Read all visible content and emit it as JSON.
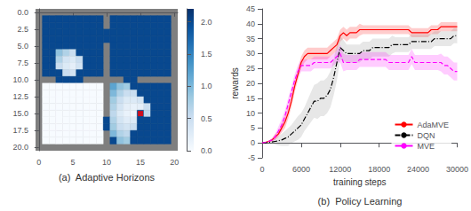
{
  "chart_data": [
    {
      "type": "heatmap",
      "xlabel": "(a)  Adaptive Horizons",
      "cells": [
        [
          null,
          null,
          null,
          null,
          null,
          null,
          null,
          null,
          null,
          null,
          null,
          null,
          null,
          null,
          null,
          null,
          null,
          null,
          null,
          null,
          null
        ],
        [
          null,
          2,
          2,
          2,
          2,
          2,
          2,
          2,
          2,
          2,
          null,
          2,
          2,
          2,
          2,
          2,
          2,
          2,
          2,
          2,
          null
        ],
        [
          null,
          2,
          2,
          2,
          2,
          2,
          2,
          2,
          2,
          2,
          null,
          2,
          2,
          2,
          2,
          2,
          2,
          2,
          2,
          2,
          null
        ],
        [
          null,
          2,
          2,
          2,
          2,
          2,
          2,
          2,
          2,
          2,
          2,
          2,
          2,
          2,
          2,
          2,
          2,
          2,
          2,
          2,
          null
        ],
        [
          null,
          2,
          2,
          2,
          2,
          2,
          2,
          2,
          2,
          2,
          2,
          2,
          2,
          2,
          2,
          2,
          2,
          2,
          2,
          2,
          null
        ],
        [
          null,
          2,
          2,
          2,
          2,
          2,
          2,
          2,
          2,
          2,
          null,
          2,
          2,
          2,
          2,
          2,
          2,
          2,
          2,
          2,
          null
        ],
        [
          null,
          2,
          2,
          0.9,
          0.7,
          0.5,
          2,
          2,
          2,
          2,
          null,
          2,
          2,
          2,
          2,
          2,
          2,
          2,
          2,
          2,
          null
        ],
        [
          null,
          2,
          2,
          0.7,
          0.4,
          0.3,
          0.5,
          2,
          2,
          2,
          null,
          2,
          2,
          2,
          2,
          2,
          2,
          2,
          2,
          2,
          null
        ],
        [
          null,
          2,
          2,
          0.5,
          0.3,
          0.2,
          0.4,
          2,
          2,
          2,
          null,
          2,
          2,
          2,
          2,
          2,
          2,
          2,
          2,
          2,
          null
        ],
        [
          null,
          2,
          2,
          2,
          0.5,
          0.4,
          2,
          2,
          2,
          2,
          null,
          2,
          2,
          2,
          2,
          2,
          2,
          2,
          2,
          2,
          null
        ],
        [
          null,
          null,
          null,
          2,
          2,
          2,
          2,
          null,
          null,
          null,
          null,
          null,
          null,
          2,
          2,
          null,
          null,
          null,
          null,
          null,
          null
        ],
        [
          null,
          0,
          0,
          0,
          0,
          0,
          0,
          0,
          0,
          0,
          null,
          1.2,
          0.9,
          0.8,
          2,
          2,
          2,
          2,
          2,
          2,
          null
        ],
        [
          null,
          0,
          0,
          0,
          0,
          0,
          0,
          0,
          0,
          0,
          null,
          1.0,
          0.7,
          0.5,
          0.5,
          2,
          2,
          2,
          2,
          2,
          null
        ],
        [
          null,
          0,
          0,
          0,
          0,
          0,
          0,
          0,
          0,
          0,
          null,
          0.8,
          0.5,
          0.3,
          0.3,
          0.4,
          2,
          2,
          2,
          2,
          null
        ],
        [
          null,
          0,
          0,
          0,
          0,
          0,
          0,
          0,
          0,
          0,
          null,
          0.7,
          0.4,
          0.2,
          0.15,
          0.2,
          0.5,
          2,
          2,
          2,
          null
        ],
        [
          null,
          0,
          0,
          0,
          0,
          0,
          0,
          0,
          0,
          0,
          null,
          0.6,
          0.3,
          0.15,
          0.1,
          2,
          0.6,
          2,
          2,
          2,
          null
        ],
        [
          null,
          0,
          0,
          0,
          0,
          0,
          0,
          0,
          0,
          0,
          2,
          0.7,
          0.4,
          0.25,
          0.3,
          2,
          2,
          2,
          2,
          2,
          null
        ],
        [
          null,
          0,
          0,
          0,
          0,
          0,
          0,
          0,
          0,
          0,
          2,
          0.8,
          0.5,
          0.4,
          0.5,
          2,
          2,
          2,
          2,
          2,
          null
        ],
        [
          null,
          0,
          0,
          0,
          0,
          0,
          0,
          0,
          0,
          0,
          null,
          1.0,
          0.7,
          0.6,
          2,
          2,
          2,
          2,
          2,
          2,
          null
        ],
        [
          null,
          0,
          0,
          0,
          0,
          0,
          0,
          0,
          0,
          0,
          null,
          2,
          0.9,
          0.8,
          2,
          2,
          2,
          2,
          2,
          2,
          null
        ],
        [
          null,
          null,
          null,
          null,
          null,
          null,
          null,
          null,
          null,
          null,
          null,
          null,
          null,
          null,
          null,
          null,
          null,
          null,
          null,
          null,
          null
        ]
      ],
      "xlim": [
        -0.5,
        20.5
      ],
      "ylim": [
        20.5,
        -0.5
      ],
      "xticks": [
        0,
        5,
        10,
        15,
        20
      ],
      "yticks": [
        {
          "value": 0,
          "label": "0.0"
        },
        2.5,
        {
          "value": 5,
          "label": "5.0"
        },
        7.5,
        {
          "value": 10,
          "label": "10.0"
        },
        12.5,
        {
          "value": 15,
          "label": "15.0"
        },
        17.5,
        {
          "value": 20,
          "label": "20.0"
        }
      ],
      "colorbar": {
        "range": [
          0.0,
          2.2
        ],
        "ticks": [
          {
            "value": 0,
            "label": "0.0"
          },
          0.5,
          {
            "value": 1,
            "label": "1.0"
          },
          1.5,
          {
            "value": 2,
            "label": "2.0"
          }
        ],
        "colors": [
          "#f7fbff",
          "#deebf7",
          "#c6dbef",
          "#9ecae1",
          "#6baed6",
          "#4292c6",
          "#2171b5",
          "#08519c",
          "#08306b"
        ],
        "missing_color": "#7f7f7f"
      },
      "grid": false,
      "series": [
        {
          "type": "scatter",
          "marker": "square",
          "color": "#ff0000",
          "x": [
            15
          ],
          "y": [
            15
          ]
        }
      ]
    },
    {
      "type": "line",
      "xlabel": "training steps",
      "ylabel": "rewards",
      "caption": "(b)  Policy Learning",
      "x": [
        0,
        500,
        1000,
        1500,
        2000,
        2500,
        3000,
        3500,
        4000,
        4500,
        5000,
        5500,
        6000,
        6500,
        7000,
        7500,
        8000,
        8500,
        9000,
        9500,
        10000,
        10500,
        11000,
        11500,
        12000,
        12500,
        13000,
        13500,
        14000,
        14500,
        15000,
        15500,
        16000,
        16500,
        17000,
        17500,
        18000,
        18500,
        19000,
        19500,
        20000,
        20500,
        21000,
        21500,
        22000,
        22500,
        23000,
        23500,
        24000,
        24500,
        25000,
        25500,
        26000,
        26500,
        27000,
        27500,
        28000,
        28500,
        29000,
        29500,
        30000
      ],
      "xlim": [
        0,
        30000
      ],
      "xticks": [
        0,
        6000,
        12000,
        18000,
        24000,
        30000
      ],
      "ylim": [
        -5,
        45
      ],
      "yticks": [
        -5,
        0,
        5,
        10,
        15,
        20,
        25,
        30,
        35,
        40,
        45
      ],
      "grid": false,
      "legend": "lower right",
      "series": [
        {
          "name": "AdaMVE",
          "color": "#ff0000",
          "band_color": "#ff0000",
          "line_style": "solid",
          "values": [
            0,
            0.2,
            0.5,
            1,
            2,
            3,
            5,
            7,
            10,
            14,
            19,
            23,
            27,
            29,
            30,
            30,
            30,
            30,
            30,
            30,
            30,
            31,
            32,
            33,
            36,
            37,
            36,
            37,
            37,
            37,
            38,
            38,
            38,
            38,
            38,
            38,
            38,
            38,
            38,
            38,
            38,
            38,
            38,
            38,
            38,
            38,
            37,
            37,
            37,
            37,
            37,
            37,
            38,
            38,
            38,
            39,
            39,
            39,
            39,
            39,
            39
          ],
          "std": [
            0,
            0.1,
            0.2,
            0.5,
            1,
            1,
            1.5,
            2,
            2,
            2,
            2,
            2,
            2,
            2,
            2,
            2,
            2,
            2,
            2,
            2,
            2,
            2,
            2,
            2,
            2,
            2,
            2,
            2,
            2,
            2,
            2,
            1.5,
            1.5,
            1.5,
            1.5,
            1.5,
            1.5,
            1.5,
            1.5,
            1.5,
            1.5,
            1.5,
            1.5,
            1.5,
            1.5,
            1.5,
            1.5,
            1.5,
            1.5,
            1.5,
            1.5,
            1.5,
            1.5,
            1.5,
            1.5,
            1.5,
            1.5,
            1.5,
            1.5,
            1.5,
            1.5
          ]
        },
        {
          "name": "DQN",
          "color": "#000000",
          "band_color": "#888888",
          "line_style": "dashdot",
          "values": [
            0,
            0,
            0.2,
            0.3,
            0.5,
            0.7,
            1,
            1.5,
            2,
            3,
            4,
            5,
            6,
            8,
            10,
            12,
            14,
            14,
            15,
            15,
            16,
            18,
            22,
            27,
            32,
            31,
            30,
            30,
            30,
            30,
            30,
            31,
            31,
            31,
            32,
            32,
            32,
            32,
            32,
            32,
            33,
            33,
            33,
            33,
            33,
            33,
            34,
            34,
            34,
            34,
            34,
            34,
            34,
            35,
            35,
            35,
            35,
            35,
            35,
            36,
            36
          ],
          "std": [
            0,
            0.2,
            0.3,
            0.5,
            1,
            1.5,
            2,
            2.5,
            3,
            3,
            3.5,
            4,
            4,
            4,
            4.5,
            5,
            5.5,
            6,
            6,
            6,
            6,
            6,
            6,
            6,
            4,
            3.5,
            3,
            3,
            3,
            3,
            3,
            3,
            3,
            3,
            3,
            3,
            3,
            3,
            3,
            3,
            3,
            2.5,
            2.5,
            2.5,
            2.5,
            2.5,
            2.5,
            2.5,
            2.5,
            2.5,
            2.5,
            2.5,
            2.5,
            2.5,
            2.5,
            2.5,
            2.5,
            2.5,
            2.5,
            2.5,
            2.5
          ]
        },
        {
          "name": "MVE",
          "color": "#ff00ff",
          "band_color": "#ff00ff",
          "line_style": "dashed",
          "values": [
            0,
            0.2,
            0.5,
            1,
            2,
            4,
            6,
            9,
            13,
            17,
            21,
            24,
            26,
            26,
            26,
            26,
            27,
            27,
            27,
            27,
            27,
            27,
            28,
            29,
            30,
            27,
            27,
            27,
            27,
            27,
            28,
            28,
            28,
            28,
            28,
            28,
            28,
            28,
            28,
            27,
            27,
            27,
            27,
            27,
            27,
            27,
            29,
            27,
            27,
            27,
            27,
            27,
            27,
            27,
            27,
            27,
            26,
            26,
            25,
            24,
            24
          ],
          "std": [
            0,
            0.1,
            0.2,
            0.5,
            1,
            1.5,
            2,
            2,
            2,
            2,
            2,
            2,
            2,
            2,
            2,
            2,
            2,
            2,
            2,
            2,
            2,
            2,
            2,
            2,
            3,
            3,
            2.5,
            2.5,
            2.5,
            2.5,
            2.5,
            2.5,
            2.5,
            2.5,
            2.5,
            2.5,
            2.5,
            2.5,
            2.5,
            2.5,
            2.5,
            2.5,
            2.5,
            2.5,
            2.5,
            2.5,
            2.5,
            2.5,
            2.5,
            2.5,
            2.5,
            2.5,
            2.5,
            2.5,
            2.5,
            3,
            3,
            3,
            3,
            3,
            3
          ]
        }
      ]
    }
  ]
}
